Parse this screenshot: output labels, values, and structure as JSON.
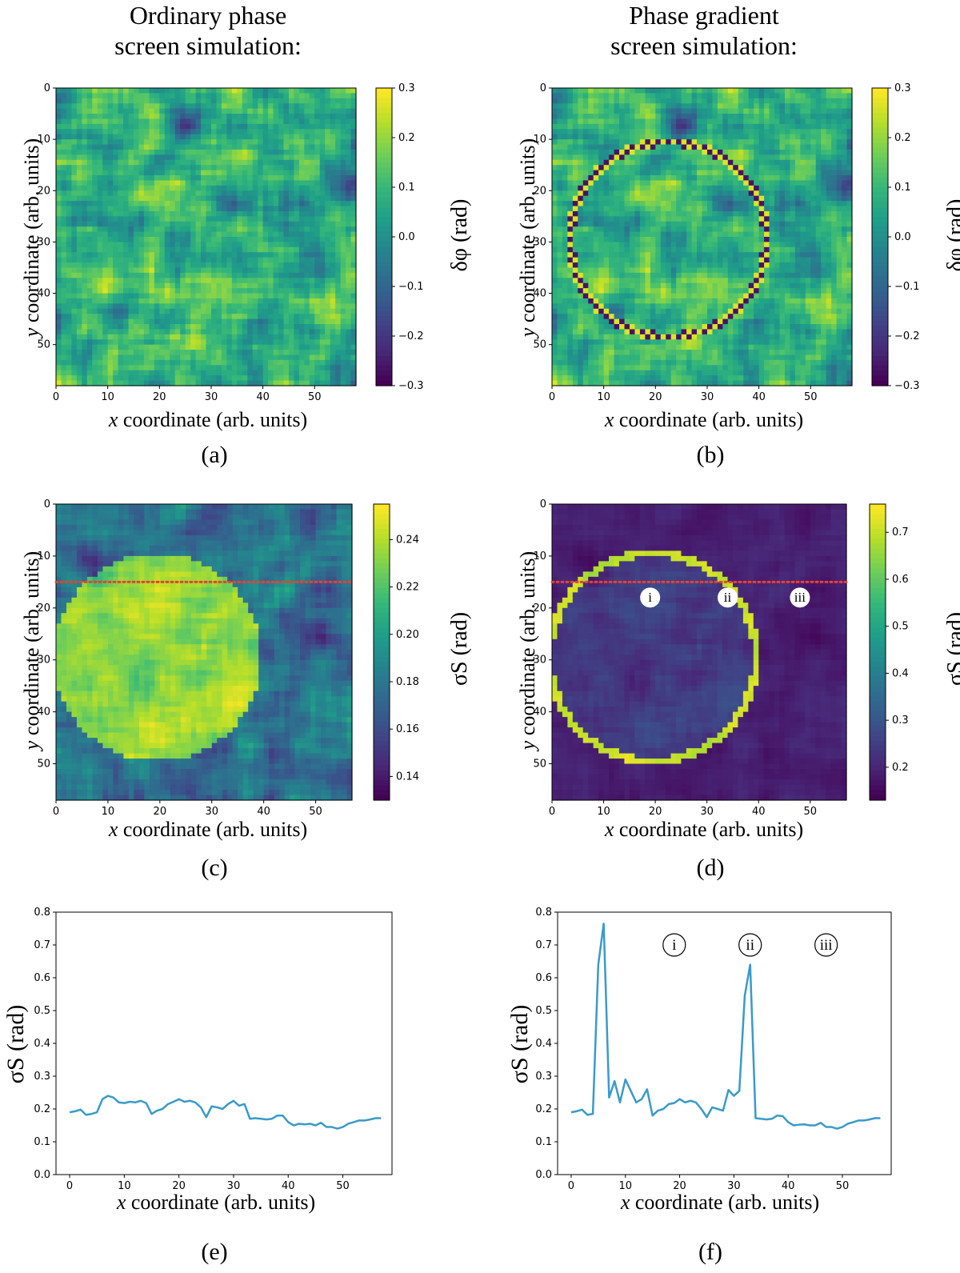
{
  "titles": {
    "left": [
      "Ordinary phase",
      "screen simulation:"
    ],
    "right": [
      "Phase gradient",
      "screen simulation:"
    ]
  },
  "labels": {
    "xlabel_var": "x",
    "xlabel_rest": " coordinate (arb. units)",
    "ylabel_var": "y",
    "ylabel_rest": " coordinate (arb. units)",
    "phase_cb": "δφ (rad)",
    "sigma_cb": "σS (rad)",
    "sigma_y": "σS (rad)"
  },
  "sublabels": [
    "(a)",
    "(b)",
    "(c)",
    "(d)",
    "(e)",
    "(f)"
  ],
  "markers": [
    "i",
    "ii",
    "iii"
  ],
  "colors": {
    "line": "#3a9ac8",
    "dotted": "#e8412f",
    "viridis": [
      "#440154",
      "#482878",
      "#3e4989",
      "#31688e",
      "#26828e",
      "#1f9e89",
      "#35b779",
      "#6ece58",
      "#b5de2b",
      "#fde725"
    ]
  },
  "chart_data": [
    {
      "id": "a",
      "type": "heatmap",
      "title": "Ordinary phase screen simulation",
      "xlabel": "x coordinate (arb. units)",
      "ylabel": "y coordinate (arb. units)",
      "grid_size": 58,
      "xlim": [
        0,
        58
      ],
      "ylim": [
        58,
        0
      ],
      "xticks": [
        0,
        10,
        20,
        30,
        40,
        50
      ],
      "yticks": [
        0,
        10,
        20,
        30,
        40,
        50
      ],
      "colorbar": {
        "label": "δφ (rad)",
        "range": [
          -0.3,
          0.3
        ],
        "ticks": [
          "0.3",
          "0.2",
          "0.1",
          "0.0",
          "−0.1",
          "−0.2",
          "−0.3"
        ]
      },
      "pattern": "random turbulence phase screen"
    },
    {
      "id": "b",
      "type": "heatmap",
      "title": "Phase gradient screen simulation",
      "xlabel": "x coordinate (arb. units)",
      "ylabel": "y coordinate (arb. units)",
      "grid_size": 58,
      "xlim": [
        0,
        58
      ],
      "ylim": [
        58,
        0
      ],
      "xticks": [
        0,
        10,
        20,
        30,
        40,
        50
      ],
      "yticks": [
        0,
        10,
        20,
        30,
        40,
        50
      ],
      "colorbar": {
        "label": "δφ (rad)",
        "range": [
          -0.3,
          0.3
        ],
        "ticks": [
          "0.3",
          "0.2",
          "0.1",
          "0.0",
          "−0.1",
          "−0.2",
          "−0.3"
        ]
      },
      "pattern": "turbulence with circular phase-gradient ring",
      "ring": {
        "cx": 22,
        "cy": 29,
        "r": 19
      }
    },
    {
      "id": "c",
      "type": "heatmap",
      "xlabel": "x coordinate (arb. units)",
      "ylabel": "y coordinate (arb. units)",
      "grid_size": 57,
      "xlim": [
        0,
        57
      ],
      "ylim": [
        57,
        0
      ],
      "xticks": [
        0,
        10,
        20,
        30,
        40,
        50
      ],
      "yticks": [
        0,
        10,
        20,
        30,
        40,
        50
      ],
      "colorbar": {
        "label": "σS (rad)",
        "range": [
          0.13,
          0.255
        ],
        "ticks": [
          "0.24",
          "0.22",
          "0.20",
          "0.18",
          "0.16",
          "0.14"
        ]
      },
      "disk": {
        "cx": 19,
        "cy": 29,
        "r": 20,
        "level": 0.225
      },
      "background_level": 0.16,
      "cut_row_y": 15
    },
    {
      "id": "d",
      "type": "heatmap",
      "xlabel": "x coordinate (arb. units)",
      "ylabel": "y coordinate (arb. units)",
      "grid_size": 57,
      "xlim": [
        0,
        57
      ],
      "ylim": [
        57,
        0
      ],
      "xticks": [
        0,
        10,
        20,
        30,
        40,
        50
      ],
      "yticks": [
        0,
        10,
        20,
        30,
        40,
        50
      ],
      "colorbar": {
        "label": "σS (rad)",
        "range": [
          0.13,
          0.76
        ],
        "ticks": [
          "0.7",
          "0.6",
          "0.5",
          "0.4",
          "0.3",
          "0.2"
        ]
      },
      "ring": {
        "cx": 19,
        "cy": 29,
        "r": 20,
        "level": 0.7
      },
      "background_level": 0.18,
      "cut_row_y": 15,
      "markers": [
        {
          "label": "i",
          "x": 19,
          "y": 18
        },
        {
          "label": "ii",
          "x": 34,
          "y": 18
        },
        {
          "label": "iii",
          "x": 48,
          "y": 18
        }
      ]
    },
    {
      "id": "e",
      "type": "line",
      "xlabel": "x coordinate (arb. units)",
      "ylabel": "σS (rad)",
      "xlim": [
        -2.5,
        59
      ],
      "ylim": [
        0.0,
        0.8
      ],
      "xticks": [
        0,
        10,
        20,
        30,
        40,
        50
      ],
      "yticks": [
        0.0,
        0.1,
        0.2,
        0.3,
        0.4,
        0.5,
        0.6,
        0.7,
        0.8
      ],
      "x": [
        0,
        1,
        2,
        3,
        4,
        5,
        6,
        7,
        8,
        9,
        10,
        11,
        12,
        13,
        14,
        15,
        16,
        17,
        18,
        19,
        20,
        21,
        22,
        23,
        24,
        25,
        26,
        27,
        28,
        29,
        30,
        31,
        32,
        33,
        34,
        35,
        36,
        37,
        38,
        39,
        40,
        41,
        42,
        43,
        44,
        45,
        46,
        47,
        48,
        49,
        50,
        51,
        52,
        53,
        54,
        55,
        56,
        57
      ],
      "y": [
        0.19,
        0.193,
        0.198,
        0.182,
        0.185,
        0.19,
        0.23,
        0.24,
        0.235,
        0.22,
        0.218,
        0.222,
        0.22,
        0.225,
        0.218,
        0.185,
        0.195,
        0.2,
        0.215,
        0.222,
        0.23,
        0.222,
        0.225,
        0.22,
        0.205,
        0.175,
        0.208,
        0.205,
        0.2,
        0.215,
        0.225,
        0.21,
        0.215,
        0.17,
        0.172,
        0.17,
        0.168,
        0.17,
        0.18,
        0.18,
        0.16,
        0.15,
        0.155,
        0.153,
        0.155,
        0.15,
        0.158,
        0.145,
        0.145,
        0.14,
        0.145,
        0.155,
        0.16,
        0.165,
        0.165,
        0.168,
        0.172,
        0.172
      ]
    },
    {
      "id": "f",
      "type": "line",
      "xlabel": "x coordinate (arb. units)",
      "ylabel": "σS (rad)",
      "xlim": [
        -2.5,
        59
      ],
      "ylim": [
        0.0,
        0.8
      ],
      "xticks": [
        0,
        10,
        20,
        30,
        40,
        50
      ],
      "yticks": [
        0.0,
        0.1,
        0.2,
        0.3,
        0.4,
        0.5,
        0.6,
        0.7,
        0.8
      ],
      "x": [
        0,
        1,
        2,
        3,
        4,
        5,
        6,
        7,
        8,
        9,
        10,
        11,
        12,
        13,
        14,
        15,
        16,
        17,
        18,
        19,
        20,
        21,
        22,
        23,
        24,
        25,
        26,
        27,
        28,
        29,
        30,
        31,
        32,
        33,
        34,
        35,
        36,
        37,
        38,
        39,
        40,
        41,
        42,
        43,
        44,
        45,
        46,
        47,
        48,
        49,
        50,
        51,
        52,
        53,
        54,
        55,
        56,
        57
      ],
      "y": [
        0.19,
        0.193,
        0.198,
        0.182,
        0.185,
        0.64,
        0.765,
        0.235,
        0.285,
        0.22,
        0.29,
        0.255,
        0.22,
        0.23,
        0.26,
        0.18,
        0.195,
        0.2,
        0.215,
        0.218,
        0.23,
        0.22,
        0.225,
        0.22,
        0.2,
        0.175,
        0.205,
        0.2,
        0.195,
        0.258,
        0.24,
        0.255,
        0.545,
        0.64,
        0.172,
        0.17,
        0.168,
        0.17,
        0.18,
        0.178,
        0.16,
        0.15,
        0.152,
        0.153,
        0.15,
        0.15,
        0.158,
        0.145,
        0.145,
        0.14,
        0.145,
        0.155,
        0.16,
        0.165,
        0.165,
        0.168,
        0.172,
        0.172
      ],
      "markers": [
        {
          "label": "i",
          "x": 19,
          "y": 0.7
        },
        {
          "label": "ii",
          "x": 33,
          "y": 0.7
        },
        {
          "label": "iii",
          "x": 47,
          "y": 0.7
        }
      ]
    }
  ]
}
